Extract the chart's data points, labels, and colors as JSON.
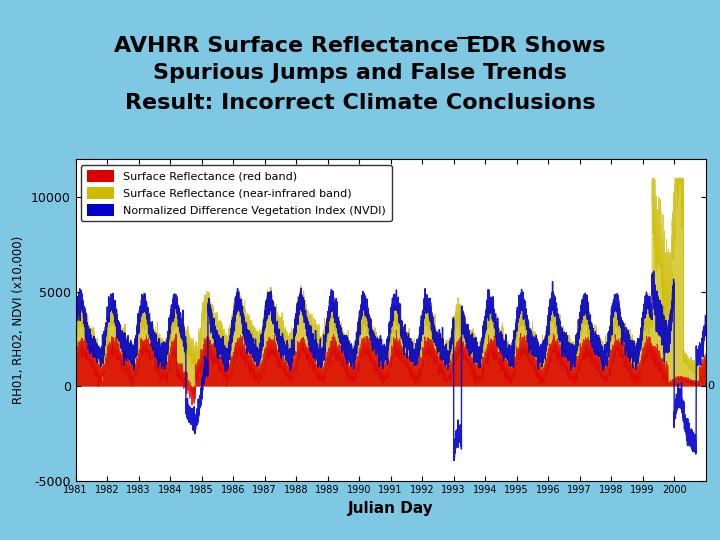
{
  "title_line1a": "AVHRR Surface Reflectance ",
  "title_line1b": "EDR",
  "title_line1c": " Shows",
  "title_line2": "Spurious Jumps and False Trends",
  "title_line3": "Result: Incorrect Climate Conclusions",
  "xlabel": "Julian Day",
  "ylabel": "RH01, RH02, NDVI (x10,000)",
  "ylim": [
    -5000,
    12000
  ],
  "yticks": [
    -5000,
    0,
    5000,
    10000
  ],
  "year_start": 1981,
  "year_end": 2001,
  "bg_header_color": "#7ec8e3",
  "bg_plot_color": "#ffffff",
  "header_bar_color": "#a0522d",
  "legend_labels": [
    "Surface Reflectance (red band)",
    "Surface Reflectance (near-infrared band)",
    "Normalized Difference Vegetation Index (NVDI)"
  ],
  "legend_colors": [
    "#dd0000",
    "#ccbb00",
    "#0000cc"
  ],
  "title_fontsize": 16,
  "axis_fontsize": 11
}
